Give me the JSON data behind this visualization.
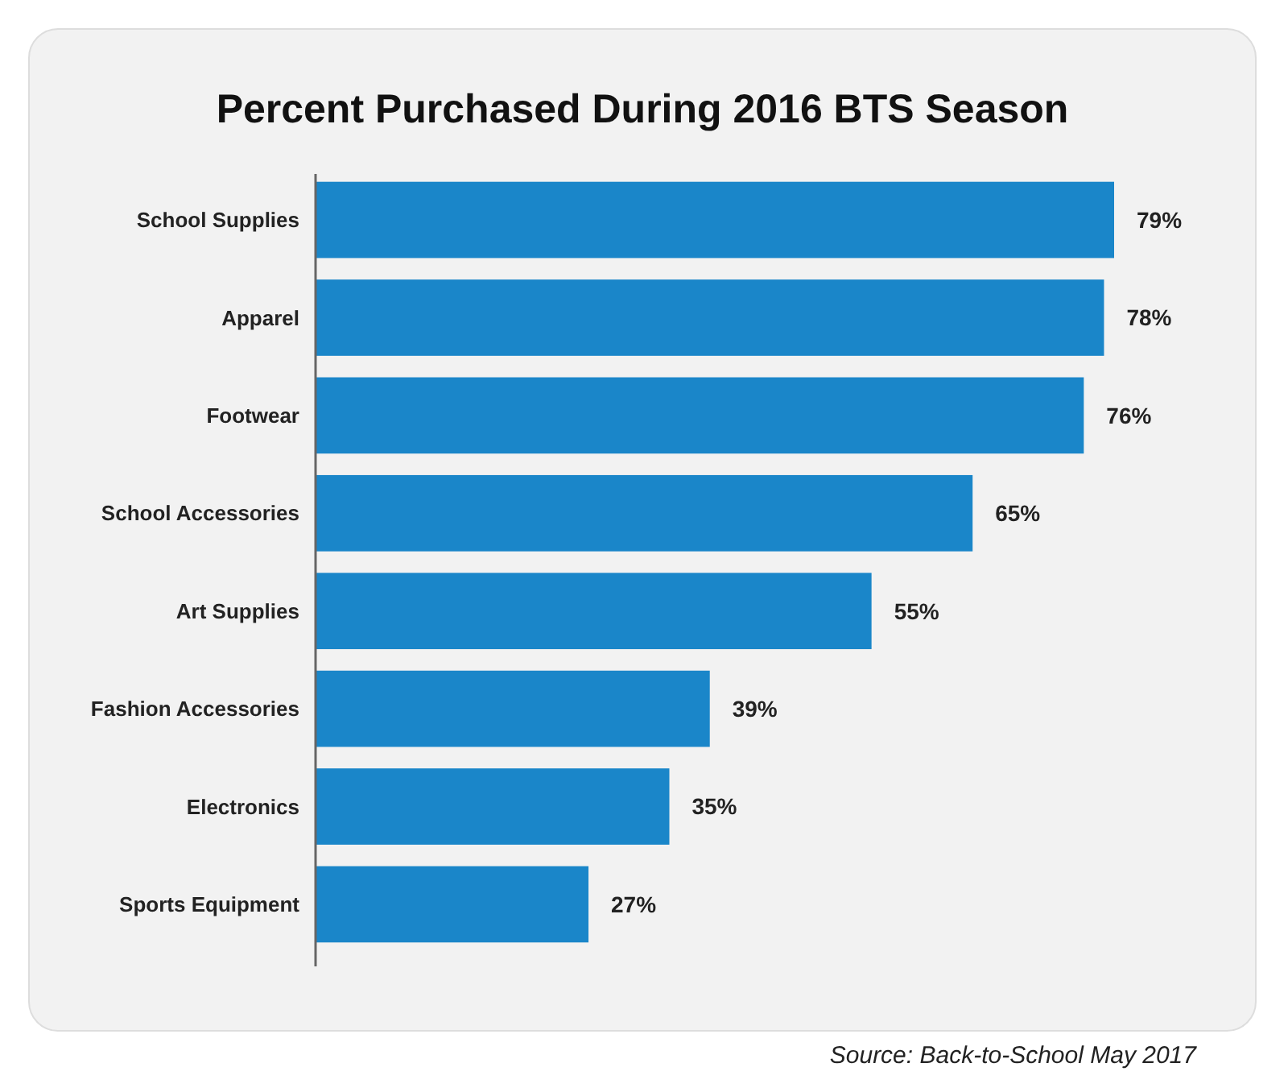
{
  "chart_data": {
    "type": "bar",
    "orientation": "horizontal",
    "title": "Percent Purchased During 2016 BTS Season",
    "categories": [
      "School Supplies",
      "Apparel",
      "Footwear",
      "School Accessories",
      "Art Supplies",
      "Fashion Accessories",
      "Electronics",
      "Sports Equipment"
    ],
    "values": [
      79,
      78,
      76,
      65,
      55,
      39,
      35,
      27
    ],
    "value_labels": [
      "79%",
      "78%",
      "76%",
      "65%",
      "55%",
      "39%",
      "35%",
      "27%"
    ],
    "color": "#1a86c9",
    "tick_labels": "y",
    "annotations": [
      "Source: Back-to-School May 2017"
    ]
  }
}
